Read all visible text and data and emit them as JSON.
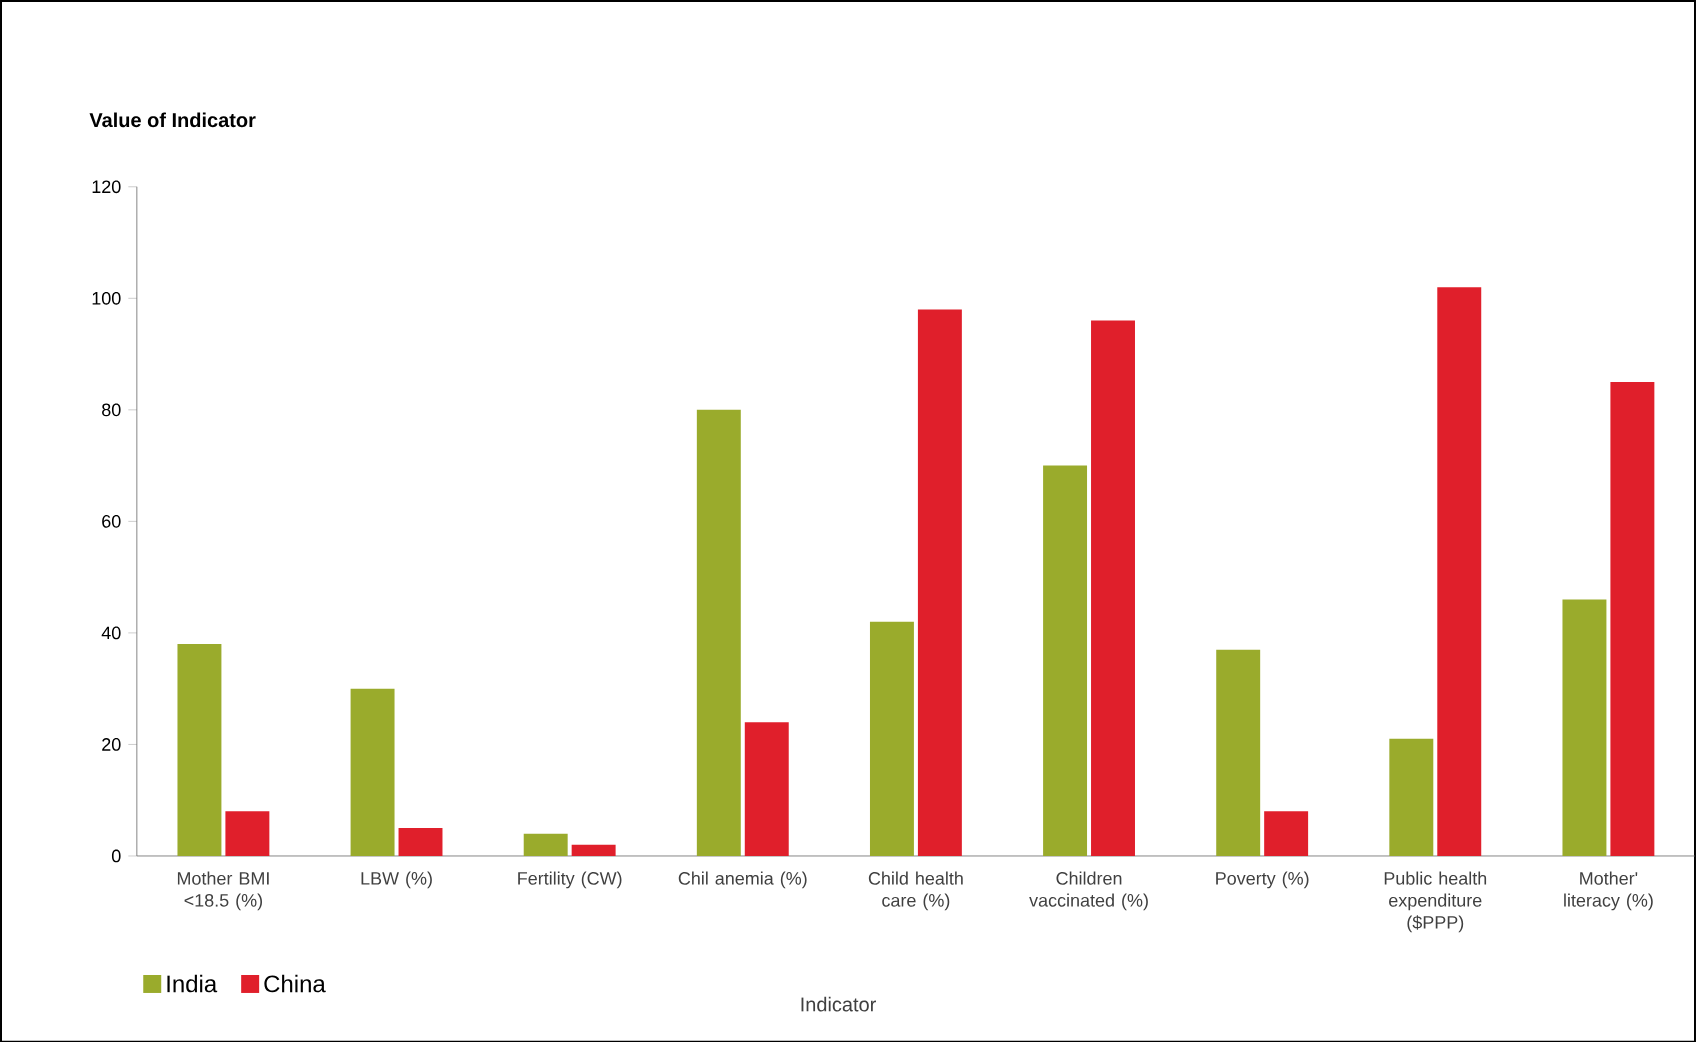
{
  "chart_data": {
    "type": "bar",
    "ylabel": "Value of Indicator",
    "xlabel": "Indicator",
    "categories": [
      "Mother BMI <18.5 (%)",
      "LBW (%)",
      "Fertility (CW)",
      "Chil anemia (%)",
      "Child health care (%)",
      "Children vaccinated (%)",
      "Poverty (%)",
      "Public health expenditure ($PPP)",
      "Mother' literacy (%)"
    ],
    "series": [
      {
        "name": "India",
        "color": "#9aab2c",
        "values": [
          38,
          30,
          4,
          80,
          42,
          70,
          37,
          21,
          46
        ]
      },
      {
        "name": "China",
        "color": "#e01f2b",
        "values": [
          8,
          5,
          2,
          24,
          98,
          96,
          8,
          102,
          85
        ]
      }
    ],
    "ylim": [
      0,
      120
    ],
    "yticks": [
      0,
      20,
      40,
      60,
      80,
      100,
      120
    ],
    "grid": false,
    "legend": "bottom left"
  }
}
